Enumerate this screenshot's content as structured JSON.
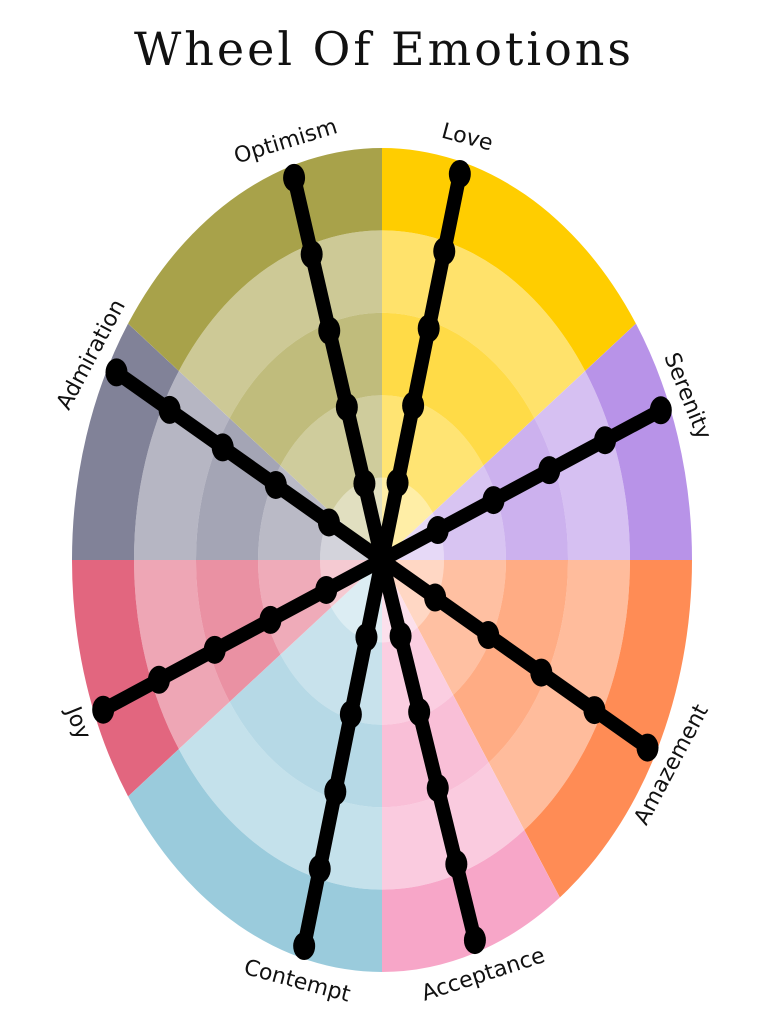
{
  "title": "Wheel Of Emotions",
  "chart_data": {
    "type": "radar",
    "levels": 5,
    "axes": [
      "Love",
      "Serenity",
      "Amazement",
      "Acceptance",
      "Contempt",
      "Joy",
      "Admiration",
      "Optimism"
    ],
    "series": [
      {
        "values": [
          5,
          5,
          5,
          5,
          5,
          5,
          5,
          5
        ]
      }
    ],
    "sectors": [
      {
        "color": "#ffcd00"
      },
      {
        "color": "#b893e8"
      },
      {
        "color": "#ff8c55"
      },
      {
        "color": "#f7a6c8"
      },
      {
        "color": "#9acbdc"
      },
      {
        "color": "#e2667f"
      },
      {
        "color": "#818298"
      },
      {
        "color": "#a8a24a"
      }
    ],
    "spoke_color": "#000000"
  }
}
